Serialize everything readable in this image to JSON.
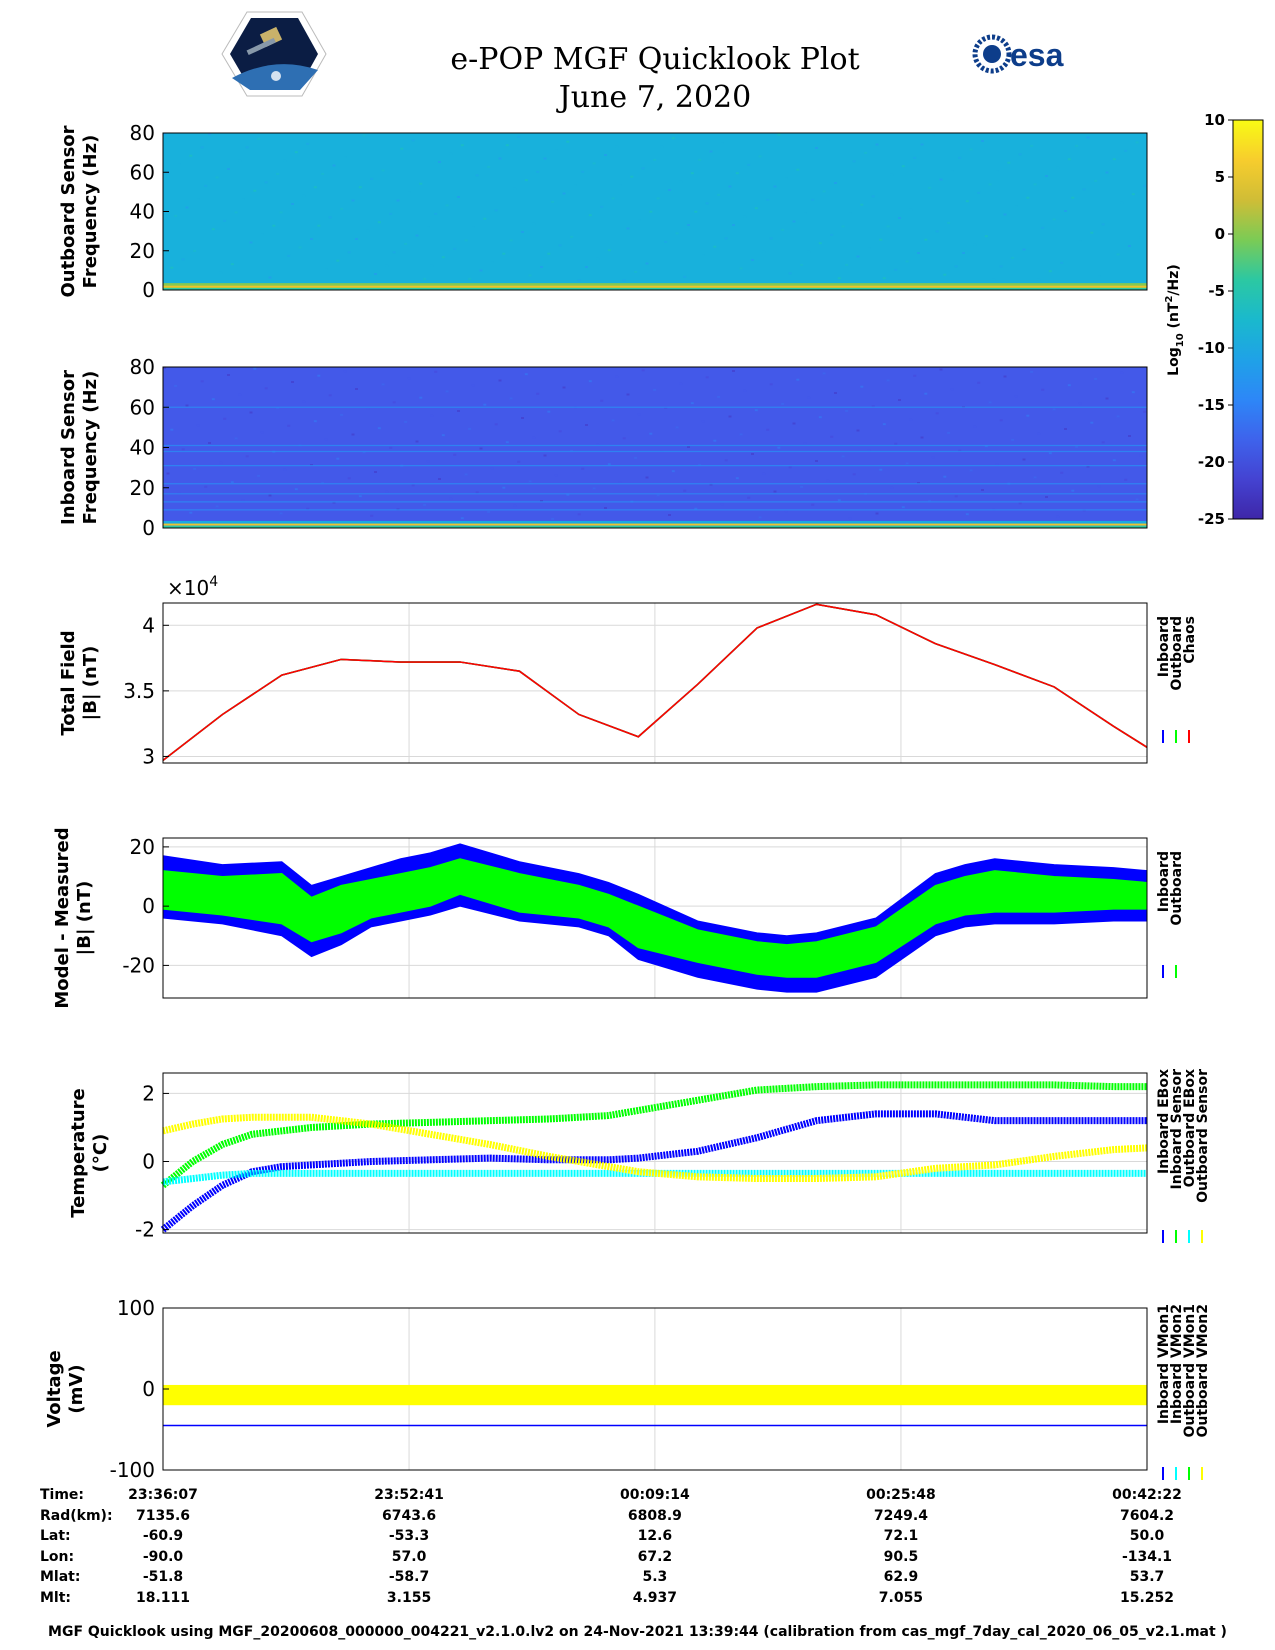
{
  "header": {
    "title": "e-POP MGF Quicklook Plot",
    "date": "June 7, 2020",
    "left_logo": "Cassiope satellite logo",
    "right_logo_text": "esa"
  },
  "colors": {
    "inboard": "#0000ff",
    "outboard": "#00ff00",
    "chaos": "#ff0000",
    "yellow": "#ffff00",
    "cyan": "#00ffff",
    "axis": "#000000",
    "grid": "#d9d9d9"
  },
  "colorbar": {
    "label_main": "Log",
    "label_sub": "10",
    "label_rest": " (nT",
    "label_sup": "2",
    "label_end": "/Hz)",
    "ticks": [
      "10",
      "5",
      "0",
      "-5",
      "-10",
      "-15",
      "-20",
      "-25"
    ],
    "range": [
      -25,
      10
    ]
  },
  "chart_data": [
    {
      "type": "heatmap",
      "ylabel_line1": "Outboard Sensor",
      "ylabel_line2": "Frequency (Hz)",
      "ylim": [
        0,
        80
      ],
      "yticks": [
        "80",
        "60",
        "40",
        "20",
        "0"
      ],
      "zlim": [
        -25,
        10
      ],
      "background_level": -9,
      "low_band_level": 5,
      "lines_hz": []
    },
    {
      "type": "heatmap",
      "ylabel_line1": "Inboard Sensor",
      "ylabel_line2": "Frequency (Hz)",
      "ylim": [
        0,
        80
      ],
      "yticks": [
        "80",
        "60",
        "40",
        "20",
        "0"
      ],
      "zlim": [
        -25,
        10
      ],
      "background_level": -19,
      "low_band_level": 5,
      "lines_hz": [
        9,
        13,
        17,
        22,
        31,
        38,
        41,
        60
      ]
    },
    {
      "type": "line",
      "ylabel_line1": "Total Field",
      "ylabel_line2": "|B| (nT)",
      "multiplier": "×10",
      "multiplier_exp": "4",
      "ylim": [
        2.95,
        4.17
      ],
      "yticks": [
        "4",
        "3.5",
        "3"
      ],
      "ytick_values": [
        4,
        3.5,
        3
      ],
      "x_minutes": [
        0,
        4,
        8,
        12,
        16,
        20,
        24,
        28,
        32,
        36,
        40,
        44,
        48,
        52,
        56,
        60,
        64,
        66.25
      ],
      "series": [
        {
          "name": "Inboard",
          "color": "#0000ff",
          "values": [
            2.97,
            3.32,
            3.62,
            3.74,
            3.72,
            3.72,
            3.65,
            3.32,
            3.15,
            3.55,
            3.98,
            4.16,
            4.08,
            3.86,
            3.7,
            3.53,
            3.23,
            3.07
          ]
        },
        {
          "name": "Outboard",
          "color": "#00ff00",
          "values": [
            2.97,
            3.32,
            3.62,
            3.74,
            3.72,
            3.72,
            3.65,
            3.32,
            3.15,
            3.55,
            3.98,
            4.16,
            4.08,
            3.86,
            3.7,
            3.53,
            3.23,
            3.07
          ]
        },
        {
          "name": "Chaos",
          "color": "#ff0000",
          "values": [
            2.97,
            3.32,
            3.62,
            3.74,
            3.72,
            3.72,
            3.65,
            3.32,
            3.15,
            3.55,
            3.98,
            4.16,
            4.08,
            3.86,
            3.7,
            3.53,
            3.23,
            3.07
          ]
        }
      ]
    },
    {
      "type": "area",
      "ylabel_line1": "Model - Measured",
      "ylabel_line2": "|B| (nT)",
      "ylim": [
        -31,
        23
      ],
      "yticks": [
        "20",
        "0",
        "-20"
      ],
      "ytick_values": [
        20,
        0,
        -20
      ],
      "x_minutes": [
        0,
        4,
        8,
        10,
        12,
        14,
        16,
        18,
        20,
        24,
        28,
        30,
        32,
        36,
        40,
        42,
        44,
        48,
        52,
        54,
        56,
        60,
        64,
        66.25
      ],
      "series": [
        {
          "name": "Inboard",
          "color": "#0000ff",
          "upper": [
            17,
            14,
            15,
            7,
            10,
            13,
            16,
            18,
            21,
            15,
            11,
            8,
            4,
            -5,
            -9,
            -10,
            -9,
            -4,
            11,
            14,
            16,
            14,
            13,
            12
          ],
          "lower": [
            -4,
            -6,
            -10,
            -17,
            -13,
            -7,
            -5,
            -3,
            0,
            -5,
            -7,
            -10,
            -18,
            -24,
            -28,
            -29,
            -29,
            -24,
            -10,
            -7,
            -6,
            -6,
            -5,
            -5
          ]
        },
        {
          "name": "Outboard",
          "color": "#00ff00",
          "upper": [
            12,
            10,
            11,
            3,
            7,
            9,
            11,
            13,
            16,
            11,
            7,
            4,
            0,
            -8,
            -12,
            -13,
            -12,
            -7,
            7,
            10,
            12,
            10,
            9,
            8
          ],
          "lower": [
            -1,
            -3,
            -6,
            -12,
            -9,
            -4,
            -2,
            0,
            4,
            -2,
            -4,
            -7,
            -14,
            -19,
            -23,
            -24,
            -24,
            -19,
            -6,
            -3,
            -2,
            -2,
            -1,
            -1
          ]
        }
      ]
    },
    {
      "type": "line",
      "ylabel_line1": "Temperature",
      "ylabel_line2": "(°C)",
      "ylim": [
        -2.1,
        2.6
      ],
      "yticks": [
        "2",
        "0",
        "-2"
      ],
      "ytick_values": [
        2,
        0,
        -2
      ],
      "x_minutes": [
        0,
        2,
        4,
        6,
        8,
        10,
        14,
        18,
        22,
        26,
        30,
        32,
        36,
        40,
        44,
        48,
        52,
        56,
        60,
        64,
        66.25
      ],
      "series": [
        {
          "name": "Inboard EBox",
          "color": "#0000ff",
          "values": [
            -2.0,
            -1.3,
            -0.7,
            -0.3,
            -0.15,
            -0.1,
            0.0,
            0.05,
            0.1,
            0.05,
            0.05,
            0.1,
            0.3,
            0.7,
            1.2,
            1.4,
            1.4,
            1.2,
            1.2,
            1.2,
            1.2
          ]
        },
        {
          "name": "Inboard Sensor",
          "color": "#00ff00",
          "values": [
            -0.7,
            0.0,
            0.5,
            0.8,
            0.9,
            1.0,
            1.1,
            1.15,
            1.2,
            1.25,
            1.35,
            1.5,
            1.8,
            2.1,
            2.2,
            2.25,
            2.25,
            2.25,
            2.25,
            2.2,
            2.2
          ]
        },
        {
          "name": "Outboard EBox",
          "color": "#00ffff",
          "values": [
            -0.6,
            -0.5,
            -0.4,
            -0.35,
            -0.35,
            -0.35,
            -0.35,
            -0.35,
            -0.35,
            -0.35,
            -0.35,
            -0.35,
            -0.35,
            -0.35,
            -0.35,
            -0.35,
            -0.35,
            -0.35,
            -0.35,
            -0.35,
            -0.35
          ]
        },
        {
          "name": "Outboard Sensor",
          "color": "#ffff00",
          "values": [
            0.9,
            1.1,
            1.25,
            1.3,
            1.3,
            1.3,
            1.1,
            0.8,
            0.5,
            0.15,
            -0.15,
            -0.3,
            -0.45,
            -0.5,
            -0.5,
            -0.45,
            -0.2,
            -0.1,
            0.15,
            0.35,
            0.4
          ]
        }
      ]
    },
    {
      "type": "line",
      "ylabel_line1": "Voltage",
      "ylabel_line2": "(mV)",
      "ylim": [
        -100,
        100
      ],
      "yticks": [
        "100",
        "0",
        "-100"
      ],
      "ytick_values": [
        100,
        0,
        -100
      ],
      "x_minutes": [
        0,
        66.25
      ],
      "series": [
        {
          "name": "Inboard VMon1",
          "color": "#0000ff",
          "values": [
            -45,
            -45
          ]
        },
        {
          "name": "Inboard VMon2",
          "color": "#00ffff",
          "values": [
            -10,
            -10
          ]
        },
        {
          "name": "Outboard VMon1",
          "color": "#00ff00",
          "values": [
            -5,
            -5
          ]
        },
        {
          "name": "Outboard VMon2",
          "color": "#ffff00",
          "values": [
            -5,
            -5
          ]
        }
      ],
      "band_low": -20,
      "band_high": 5
    }
  ],
  "legends": {
    "total_field": [
      "Inboard",
      "Outboard",
      "Chaos"
    ],
    "model_measured": [
      "Inboard",
      "Outboard"
    ],
    "temperature": [
      "Inboard EBox",
      "Inboard Sensor",
      "Outboard EBox",
      "Outboard Sensor"
    ],
    "voltage": [
      "Inboard VMon1",
      "Inboard VMon2",
      "Outboard VMon1",
      "Outboard VMon2"
    ]
  },
  "ephemeris": {
    "labels": [
      "Time:",
      "Rad(km):",
      "Lat:",
      "Lon:",
      "Mlat:",
      "Mlt:"
    ],
    "columns": [
      [
        "23:36:07",
        "7135.6",
        "-60.9",
        "-90.0",
        "-51.8",
        "18.111"
      ],
      [
        "23:52:41",
        "6743.6",
        "-53.3",
        "57.0",
        "-58.7",
        "3.155"
      ],
      [
        "00:09:14",
        "6808.9",
        "12.6",
        "67.2",
        "5.3",
        "4.937"
      ],
      [
        "00:25:48",
        "7249.4",
        "72.1",
        "90.5",
        "62.9",
        "7.055"
      ],
      [
        "00:42:22",
        "7604.2",
        "50.0",
        "-134.1",
        "53.7",
        "15.252"
      ]
    ]
  },
  "footer": "MGF Quicklook using MGF_20200608_000000_004221_v2.1.0.lv2 on 24-Nov-2021 13:39:44 (calibration from cas_mgf_7day_cal_2020_06_05_v2.1.mat )"
}
